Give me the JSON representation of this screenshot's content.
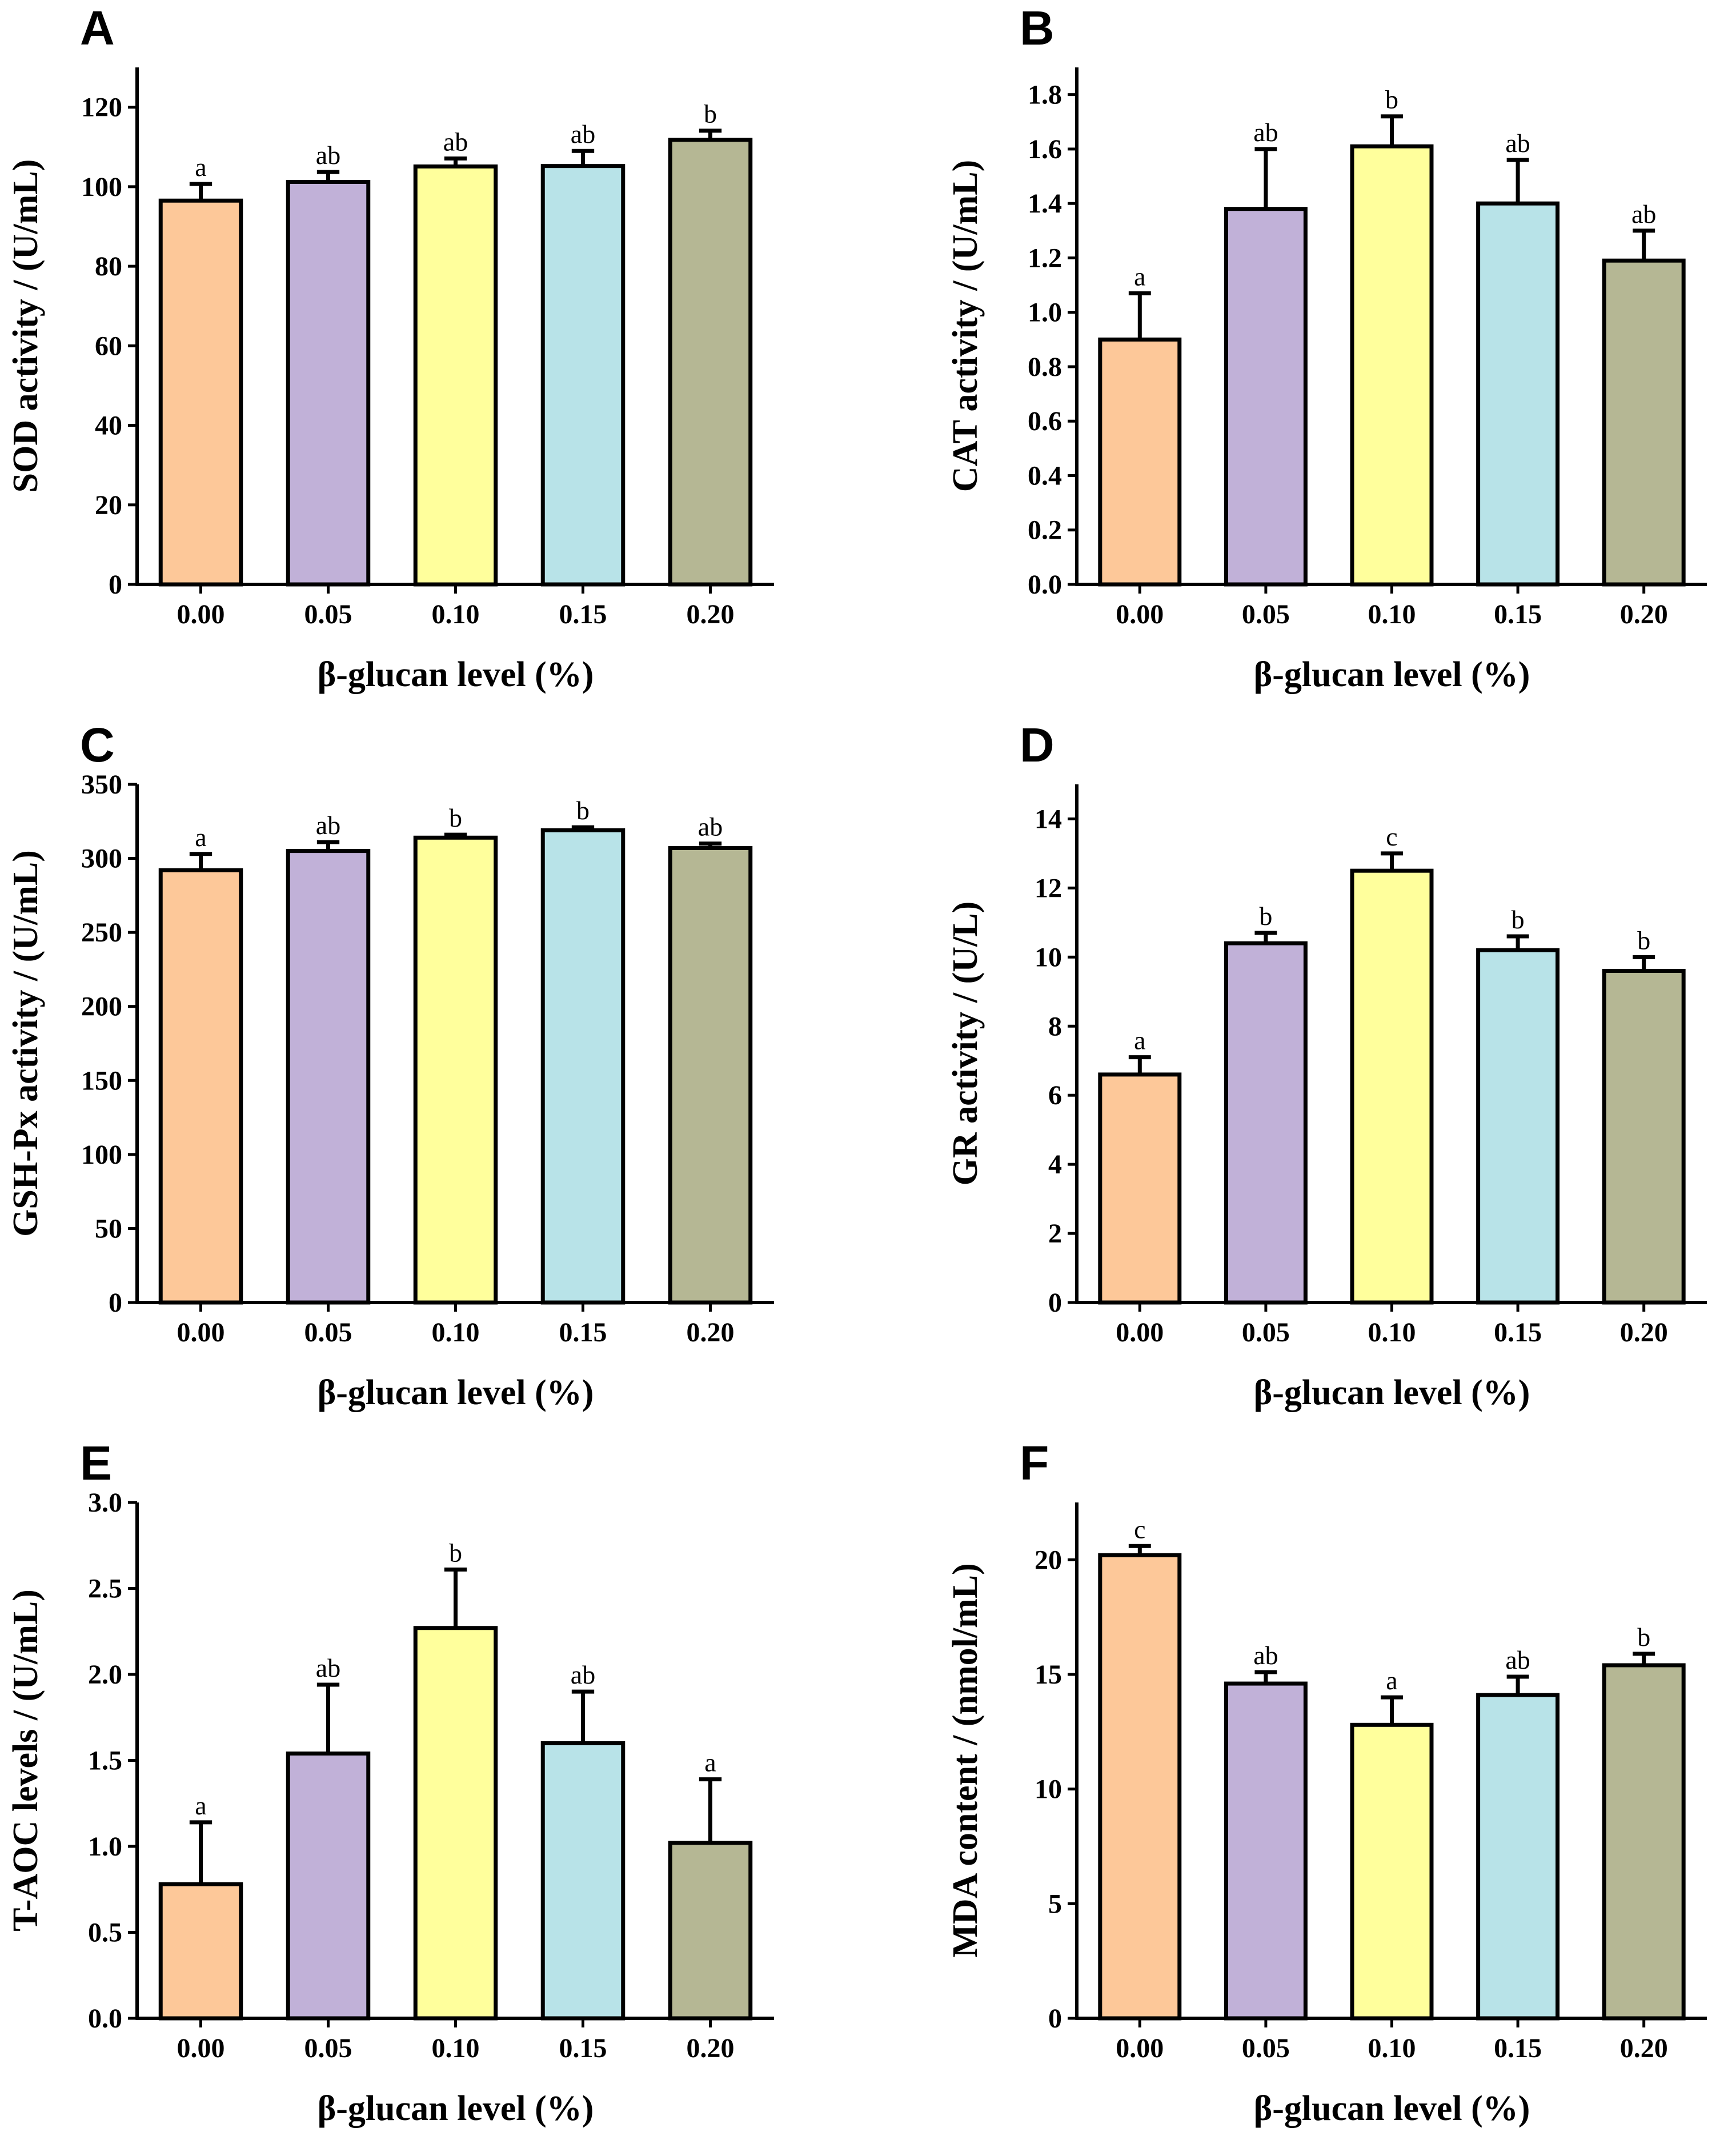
{
  "chart_data": [
    {
      "type": "bar",
      "panel": "A",
      "categories": [
        "0.00",
        "0.05",
        "0.10",
        "0.15",
        "0.20"
      ],
      "values": [
        96.5,
        101.2,
        105.1,
        105.2,
        111.8
      ],
      "errors": [
        4.2,
        2.5,
        2.0,
        3.8,
        2.3
      ],
      "significance": [
        "a",
        "ab",
        "ab",
        "ab",
        "b"
      ],
      "colors": [
        "#FDC899",
        "#C1B1D8",
        "#FFFF9C",
        "#B8E3E8",
        "#B5B794"
      ],
      "xlabel": "β-glucan level (%)",
      "ylabel": "SOD activity / (U/mL)",
      "ylim": [
        0,
        130
      ],
      "yticks": [
        0,
        20,
        40,
        60,
        80,
        100,
        120
      ],
      "ytick_labels": [
        "0",
        "20",
        "40",
        "60",
        "80",
        "100",
        "120"
      ]
    },
    {
      "type": "bar",
      "panel": "B",
      "categories": [
        "0.00",
        "0.05",
        "0.10",
        "0.15",
        "0.20"
      ],
      "values": [
        0.9,
        1.38,
        1.61,
        1.4,
        1.19
      ],
      "errors": [
        0.17,
        0.22,
        0.11,
        0.16,
        0.11
      ],
      "significance": [
        "a",
        "ab",
        "b",
        "ab",
        "ab"
      ],
      "colors": [
        "#FDC899",
        "#C1B1D8",
        "#FFFF9C",
        "#B8E3E8",
        "#B5B794"
      ],
      "xlabel": "β-glucan level (%)",
      "ylabel": "CAT activity / (U/mL)",
      "ylim": [
        0,
        1.9
      ],
      "yticks": [
        0,
        0.2,
        0.4,
        0.6,
        0.8,
        1.0,
        1.2,
        1.4,
        1.6,
        1.8
      ],
      "ytick_labels": [
        "0.0",
        "0.2",
        "0.4",
        "0.6",
        "0.8",
        "1.0",
        "1.2",
        "1.4",
        "1.6",
        "1.8"
      ]
    },
    {
      "type": "bar",
      "panel": "C",
      "categories": [
        "0.00",
        "0.05",
        "0.10",
        "0.15",
        "0.20"
      ],
      "values": [
        292,
        305,
        314,
        319,
        307
      ],
      "errors": [
        11,
        6,
        2,
        2,
        3
      ],
      "significance": [
        "a",
        "ab",
        "b",
        "b",
        "ab"
      ],
      "colors": [
        "#FDC899",
        "#C1B1D8",
        "#FFFF9C",
        "#B8E3E8",
        "#B5B794"
      ],
      "xlabel": "β-glucan level (%)",
      "ylabel": "GSH-Px activity / (U/mL)",
      "ylim": [
        0,
        350
      ],
      "yticks": [
        0,
        50,
        100,
        150,
        200,
        250,
        300,
        350
      ],
      "ytick_labels": [
        "0",
        "50",
        "100",
        "150",
        "200",
        "250",
        "300",
        "350"
      ]
    },
    {
      "type": "bar",
      "panel": "D",
      "categories": [
        "0.00",
        "0.05",
        "0.10",
        "0.15",
        "0.20"
      ],
      "values": [
        6.6,
        10.4,
        12.5,
        10.2,
        9.6
      ],
      "errors": [
        0.5,
        0.3,
        0.5,
        0.4,
        0.4
      ],
      "significance": [
        "a",
        "b",
        "c",
        "b",
        "b"
      ],
      "colors": [
        "#FDC899",
        "#C1B1D8",
        "#FFFF9C",
        "#B8E3E8",
        "#B5B794"
      ],
      "xlabel": "β-glucan level (%)",
      "ylabel": "GR activity / (U/L)",
      "ylim": [
        0,
        15
      ],
      "yticks": [
        0,
        2,
        4,
        6,
        8,
        10,
        12,
        14
      ],
      "ytick_labels": [
        "0",
        "2",
        "4",
        "6",
        "8",
        "10",
        "12",
        "14"
      ]
    },
    {
      "type": "bar",
      "panel": "E",
      "categories": [
        "0.00",
        "0.05",
        "0.10",
        "0.15",
        "0.20"
      ],
      "values": [
        0.78,
        1.54,
        2.27,
        1.6,
        1.02
      ],
      "errors": [
        0.36,
        0.4,
        0.34,
        0.3,
        0.37
      ],
      "significance": [
        "a",
        "ab",
        "b",
        "ab",
        "a"
      ],
      "colors": [
        "#FDC899",
        "#C1B1D8",
        "#FFFF9C",
        "#B8E3E8",
        "#B5B794"
      ],
      "xlabel": "β-glucan level (%)",
      "ylabel": "T-AOC levels / (U/mL)",
      "ylim": [
        0,
        3.0
      ],
      "yticks": [
        0,
        0.5,
        1.0,
        1.5,
        2.0,
        2.5,
        3.0
      ],
      "ytick_labels": [
        "0.0",
        "0.5",
        "1.0",
        "1.5",
        "2.0",
        "2.5",
        "3.0"
      ]
    },
    {
      "type": "bar",
      "panel": "F",
      "categories": [
        "0.00",
        "0.05",
        "0.10",
        "0.15",
        "0.20"
      ],
      "values": [
        20.2,
        14.6,
        12.8,
        14.1,
        15.4
      ],
      "errors": [
        0.4,
        0.5,
        1.2,
        0.8,
        0.5
      ],
      "significance": [
        "c",
        "ab",
        "a",
        "ab",
        "b"
      ],
      "colors": [
        "#FDC899",
        "#C1B1D8",
        "#FFFF9C",
        "#B8E3E8",
        "#B5B794"
      ],
      "xlabel": "β-glucan level (%)",
      "ylabel": "MDA content / (nmol/mL)",
      "ylim": [
        0,
        22.5
      ],
      "yticks": [
        0,
        5,
        10,
        15,
        20
      ],
      "ytick_labels": [
        "0",
        "5",
        "10",
        "15",
        "20"
      ]
    }
  ]
}
